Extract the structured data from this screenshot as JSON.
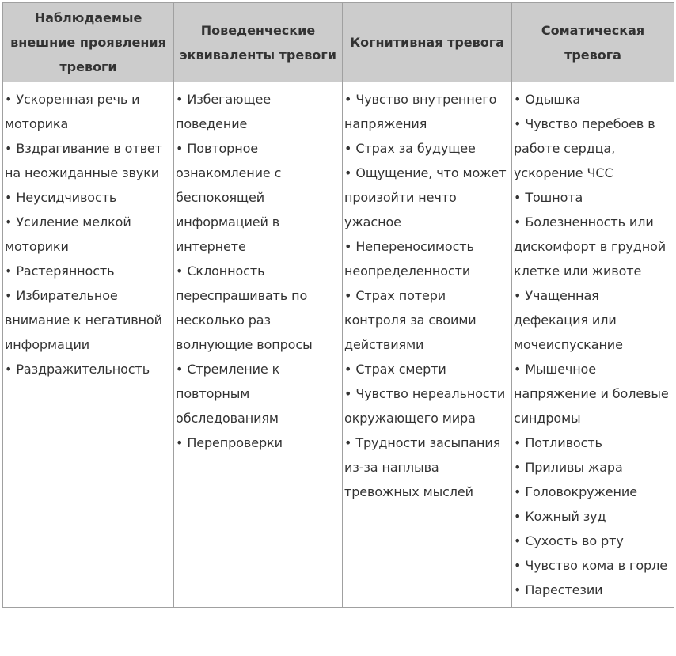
{
  "table": {
    "headers": [
      "Наблюдаемые внешние проявления тревоги",
      "Поведенческие эквиваленты тревоги",
      "Когнитивная тревога",
      "Соматическая тревога"
    ],
    "columns": [
      [
        "• Ускоренная речь и моторика",
        "• Вздрагивание в ответ на неожиданные звуки",
        "• Неусидчивость",
        "• Усиление мелкой моторики",
        "• Растерянность",
        "• Избирательное внимание к негативной информации",
        "• Раздражительность"
      ],
      [
        "• Избегающее поведение",
        "• Повторное ознакомление с беспокоящей информацией в интернете",
        "• Склонность переспрашивать по несколько раз волнующие вопросы",
        "• Стремление к повторным обследованиям",
        "• Перепроверки"
      ],
      [
        "• Чувство внутреннего напряжения",
        "• Страх за будущее",
        "• Ощущение, что может произойти нечто ужасное",
        "• Непереносимость неопределенности",
        "• Страх потери контроля за своими действиями",
        "• Страх смерти",
        "• Чувство нереальности окружающего мира",
        "• Трудности засыпания из-за наплыва тревожных мыслей"
      ],
      [
        "• Одышка",
        "• Чувство перебоев в работе сердца, ускорение ЧСС",
        "• Тошнота",
        "• Болезненность или дискомфорт в грудной клетке или животе",
        "• Учащенная дефекация или мочеиспускание",
        "• Мышечное напряжение и болевые синдромы",
        "• Потливость",
        "• Приливы жара",
        "• Головокружение",
        "• Кожный зуд",
        "• Сухость во рту",
        "• Чувство кома в горле",
        "• Парестезии"
      ]
    ]
  }
}
